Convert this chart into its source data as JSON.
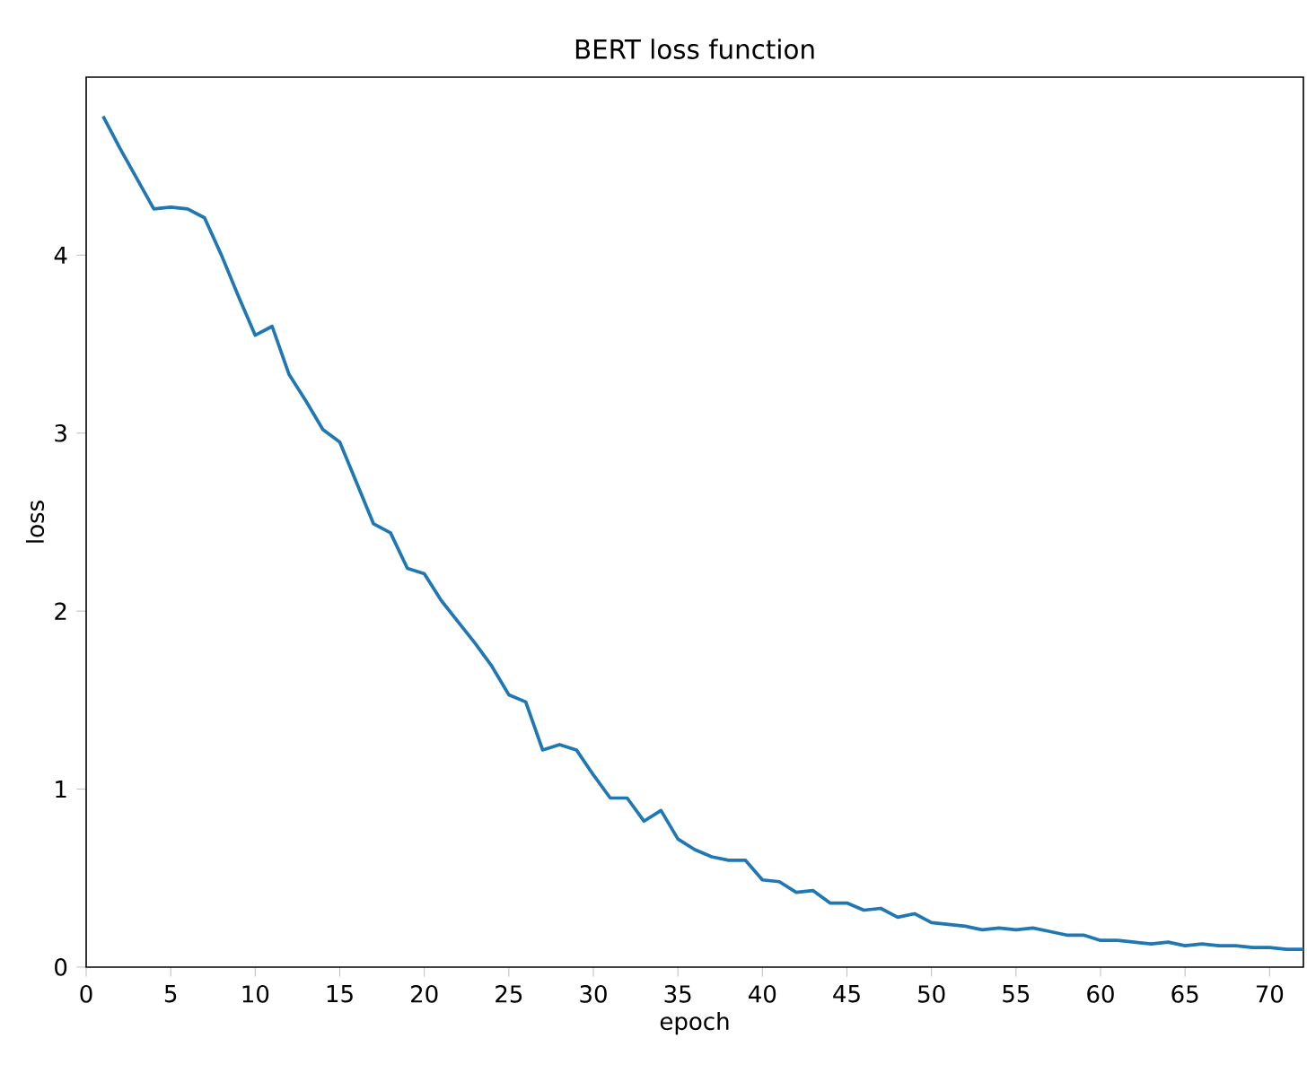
{
  "chart_data": {
    "type": "line",
    "title": "BERT loss function",
    "xlabel": "epoch",
    "ylabel": "loss",
    "x": [
      1,
      2,
      3,
      4,
      5,
      6,
      7,
      8,
      9,
      10,
      11,
      12,
      13,
      14,
      15,
      16,
      17,
      18,
      19,
      20,
      21,
      22,
      23,
      24,
      25,
      26,
      27,
      28,
      29,
      30,
      31,
      32,
      33,
      34,
      35,
      36,
      37,
      38,
      39,
      40,
      41,
      42,
      43,
      44,
      45,
      46,
      47,
      48,
      49,
      50,
      51,
      52,
      53,
      54,
      55,
      56,
      57,
      58,
      59,
      60,
      61,
      62,
      63,
      64,
      65,
      66,
      67,
      68,
      69,
      70,
      71,
      72
    ],
    "series": [
      {
        "color": "#1f77b4",
        "values": [
          4.78,
          4.6,
          4.43,
          4.26,
          4.27,
          4.26,
          4.21,
          4.0,
          3.77,
          3.55,
          3.6,
          3.33,
          3.18,
          3.02,
          2.95,
          2.72,
          2.49,
          2.44,
          2.24,
          2.21,
          2.06,
          1.94,
          1.82,
          1.69,
          1.53,
          1.49,
          1.22,
          1.25,
          1.22,
          1.08,
          0.95,
          0.95,
          0.82,
          0.88,
          0.72,
          0.66,
          0.62,
          0.6,
          0.6,
          0.49,
          0.48,
          0.42,
          0.43,
          0.36,
          0.36,
          0.32,
          0.33,
          0.28,
          0.3,
          0.25,
          0.24,
          0.23,
          0.21,
          0.22,
          0.21,
          0.22,
          0.2,
          0.18,
          0.18,
          0.15,
          0.15,
          0.14,
          0.13,
          0.14,
          0.12,
          0.13,
          0.12,
          0.12,
          0.11,
          0.11,
          0.1,
          0.1
        ]
      }
    ],
    "xlim": [
      0,
      72
    ],
    "ylim": [
      0,
      5.0
    ],
    "xticks": [
      0,
      5,
      10,
      15,
      20,
      25,
      30,
      35,
      40,
      45,
      50,
      55,
      60,
      65,
      70
    ],
    "yticks": [
      0,
      1,
      2,
      3,
      4
    ]
  }
}
